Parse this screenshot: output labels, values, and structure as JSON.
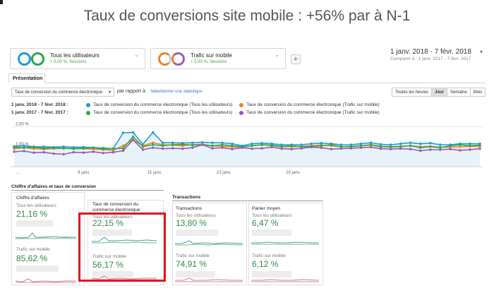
{
  "title": "Taux de conversions site mobile : +56% par à N-1",
  "segments": [
    {
      "name": "Tous les utilisateurs",
      "sub": "+ 0,00 %, Sessions",
      "colors": [
        "#1f9bd6",
        "#2ca84a"
      ]
    },
    {
      "name": "Trafic sur mobile",
      "sub": "+ 5,93 %, Sessions",
      "colors": [
        "#f07f28",
        "#9b59b6"
      ]
    }
  ],
  "add_segment": "+",
  "date": {
    "range": "1 janv. 2018 - 7 févr. 2018",
    "compare": "Comparer à : 1 janv. 2017 - 7 févr. 2017",
    "caret": "▾"
  },
  "tab": "Présentation",
  "controls": {
    "metric": "Taux de conversion du commerce électronique",
    "metric_caret": "▾",
    "vs": "par rapport à",
    "select_stat": "Sélectionner une statistique",
    "periods": [
      "Toutes les heures",
      "Jour",
      "Semaine",
      "Mois"
    ],
    "active_period": "Jour"
  },
  "legend": [
    {
      "range": "1 janv. 2018 - 7 févr. 2018 :",
      "entries": [
        {
          "label": "Taux de conversion du commerce électronique (Tous les utilisateurs)",
          "color": "#1f9bd6"
        },
        {
          "label": "Taux de conversion du commerce électronique (Trafic sur mobile)",
          "color": "#f07f28"
        }
      ]
    },
    {
      "range": "1 janv. 2017 - 7 févr. 2017 :",
      "entries": [
        {
          "label": "Taux de conversion du commerce électronique (Tous les utilisateurs)",
          "color": "#2ca84a"
        },
        {
          "label": "Taux de conversion du commerce électronique (Trafic sur mobile)",
          "color": "#9b59b6"
        }
      ]
    }
  ],
  "chart_data": {
    "type": "line",
    "ylabels": [
      "2,00 %",
      "1,00 %"
    ],
    "ylim": [
      0,
      2.2
    ],
    "xtick_labels": [
      "...",
      "8 janv.",
      "15 janv.",
      "22 janv.",
      "29 janv."
    ],
    "series": [
      {
        "name": "Taux de conversion du commerce électronique (Tous les utilisateurs)",
        "color": "#1f9bd6",
        "values": [
          1.02,
          1.05,
          1.0,
          1.0,
          0.98,
          1.0,
          0.97,
          0.98,
          0.95,
          0.93,
          0.9,
          1.7,
          1.72,
          1.12,
          1.72,
          1.2,
          1.2,
          1.18,
          1.2,
          1.22,
          1.2,
          1.2,
          1.15,
          1.05,
          1.15,
          1.18,
          1.15,
          1.1,
          1.1,
          1.1,
          1.15,
          1.18,
          1.15,
          1.1,
          1.1,
          1.15,
          1.2,
          1.12,
          1.1,
          1.15,
          1.2,
          1.15,
          1.18,
          1.1,
          1.1,
          1.15,
          1.15,
          1.15
        ]
      },
      {
        "name": "Taux de conversion du commerce électronique (Trafic sur mobile)",
        "color": "#f07f28",
        "values": [
          0.9,
          0.95,
          0.9,
          0.88,
          0.9,
          0.92,
          0.9,
          0.9,
          0.88,
          0.85,
          0.82,
          1.05,
          1.35,
          1.05,
          1.2,
          1.1,
          1.08,
          1.05,
          1.1,
          1.12,
          1.05,
          1.02,
          1.0,
          0.98,
          1.05,
          1.1,
          1.05,
          1.0,
          1.0,
          1.02,
          1.05,
          1.08,
          1.05,
          1.0,
          1.0,
          1.05,
          1.08,
          1.0,
          0.98,
          1.0,
          1.05,
          1.0,
          1.02,
          0.98,
          0.98,
          1.0,
          1.02,
          1.02
        ]
      },
      {
        "name": "Taux de conversion du commerce électronique (Tous les utilisateurs)",
        "color": "#2ca84a",
        "values": [
          0.98,
          0.95,
          0.98,
          0.92,
          0.95,
          0.92,
          0.9,
          0.92,
          0.95,
          0.88,
          0.9,
          0.92,
          1.5,
          1.0,
          1.1,
          1.05,
          1.1,
          1.12,
          1.08,
          1.1,
          1.05,
          1.1,
          1.05,
          1.0,
          1.05,
          1.1,
          1.08,
          1.02,
          1.05,
          1.0,
          1.02,
          1.05,
          1.1,
          1.0,
          1.02,
          1.05,
          1.1,
          1.02,
          1.0,
          1.02,
          1.05,
          0.95,
          1.0,
          0.95,
          1.05,
          1.1,
          1.05,
          1.08
        ]
      },
      {
        "name": "Taux de conversion du commerce électronique (Trafic sur mobile)",
        "color": "#9b59b6",
        "values": [
          0.75,
          0.78,
          0.7,
          0.72,
          0.65,
          0.62,
          0.72,
          0.7,
          0.75,
          0.68,
          0.72,
          0.8,
          1.35,
          0.85,
          0.95,
          0.9,
          0.92,
          0.9,
          0.95,
          1.1,
          0.92,
          0.95,
          0.88,
          0.95,
          0.9,
          0.92,
          0.98,
          0.9,
          0.88,
          0.92,
          0.98,
          0.95,
          0.88,
          0.9,
          0.92,
          0.95,
          0.98,
          0.9,
          0.88,
          0.9,
          0.88,
          0.8,
          0.85,
          0.85,
          0.88,
          0.82,
          0.85,
          0.9
        ]
      }
    ]
  },
  "sections": {
    "left": "Chiffre d'affaires et taux de conversion",
    "right": "Transactions"
  },
  "panels": [
    {
      "title": "Chiffre d'affaires",
      "sub_all": "Tous les utilisateurs",
      "val_all": "21,16 %",
      "sub_mob": "Trafic sur mobile",
      "val_mob": "85,62 %"
    },
    {
      "title": "Taux de conversion du commerce électronique",
      "sub_all": "Tous les utilisateurs",
      "val_all": "22,15 %",
      "sub_mob": "Trafic sur mobile",
      "val_mob": "56,17 %"
    },
    {
      "title": "Transactions",
      "sub_all": "Tous les utilisateurs",
      "val_all": "13,80 %",
      "sub_mob": "Trafic sur mobile",
      "val_mob": "74,91 %"
    },
    {
      "title": "Panier moyen",
      "sub_all": "Tous les utilisateurs",
      "val_all": "6,47 %",
      "sub_mob": "Trafic sur mobile",
      "val_mob": "6,12 %"
    }
  ]
}
